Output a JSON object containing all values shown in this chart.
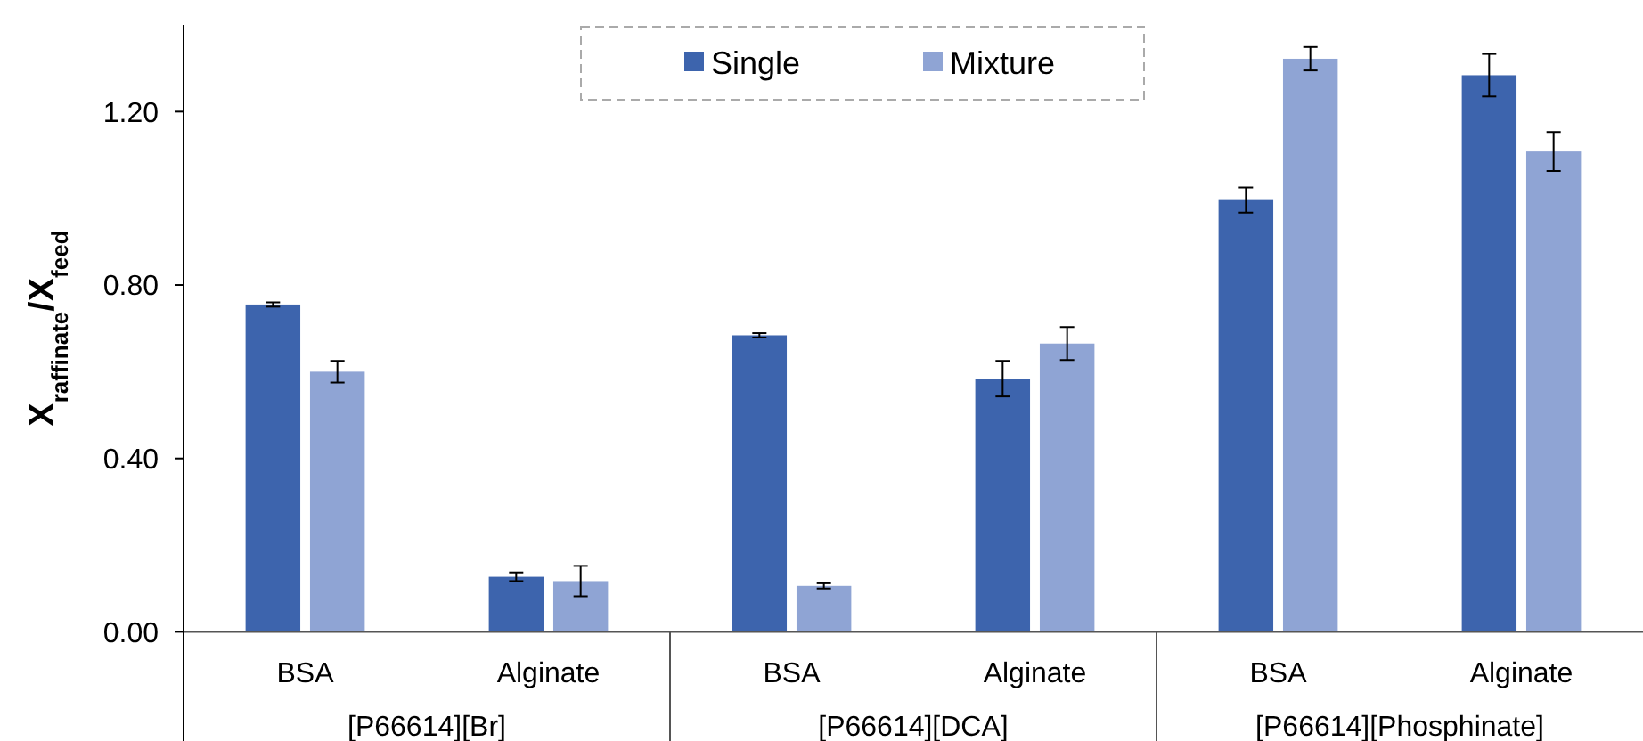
{
  "chart_data": {
    "type": "bar",
    "ylabel": "X$_{raffinate}$/X$_{feed}$",
    "categories": [
      "BSA",
      "Alginate",
      "BSA",
      "Alginate",
      "BSA",
      "Alginate"
    ],
    "series": [
      {
        "name": "Single",
        "color": "#3d64ad",
        "values": [
          0.755,
          0.127,
          0.684,
          0.584,
          0.996,
          1.284
        ],
        "errors": [
          0.005,
          0.01,
          0.005,
          0.041,
          0.029,
          0.049
        ]
      },
      {
        "name": "Mixture",
        "color": "#8fa4d4",
        "values": [
          0.6,
          0.117,
          0.106,
          0.665,
          1.322,
          1.108
        ],
        "errors": [
          0.025,
          0.035,
          0.006,
          0.038,
          0.027,
          0.045
        ]
      }
    ],
    "annotations": [
      "[P66614][Br]",
      "[P66614][DCA]",
      "[P66614][Phosphinate]"
    ],
    "ylim": [
      0,
      1.4
    ],
    "yticks": [
      {
        "value": 0,
        "label": "0.00"
      },
      {
        "value": 0.4,
        "label": "0.40"
      },
      {
        "value": 0.8,
        "label": "0.80"
      },
      {
        "value": 1.2,
        "label": "1.20"
      }
    ],
    "grid": false,
    "legend": "top"
  }
}
